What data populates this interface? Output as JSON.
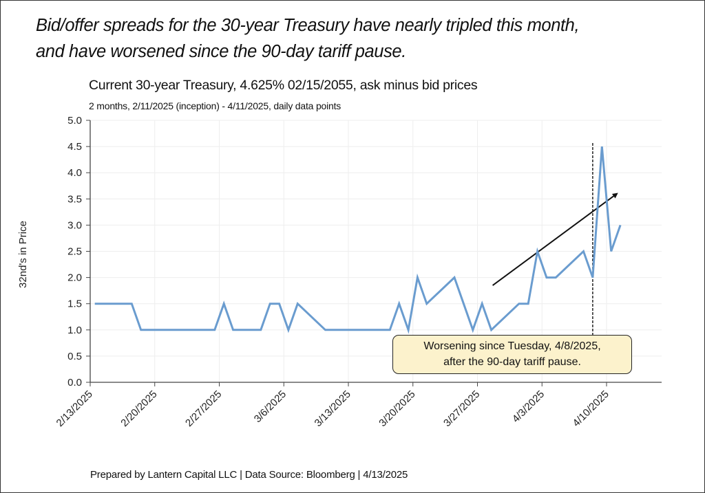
{
  "headline": {
    "line1": "Bid/offer spreads for the 30-year Treasury have nearly tripled this month,",
    "line2": "and have worsened since the 90-day tariff pause."
  },
  "footer": "Prepared by Lantern Capital LLC | Data Source: Bloomberg | 4/13/2025",
  "colors": {
    "series": "#6A9CCF",
    "callout_fill": "#FCF2CC",
    "axis": "#444444",
    "grid": "#EEEEEE"
  },
  "chart_data": {
    "type": "line",
    "title": "Current 30-year Treasury, 4.625% 02/15/2055, ask minus bid prices",
    "subtitle": "2 months, 2/11/2025 (inception) - 4/11/2025, daily data points",
    "xlabel": "",
    "ylabel": "32nd's in Price",
    "ylim": [
      0,
      5
    ],
    "yticks": [
      "0.0",
      "0.5",
      "1.0",
      "1.5",
      "2.0",
      "2.5",
      "3.0",
      "3.5",
      "4.0",
      "4.5",
      "5.0"
    ],
    "xticks": [
      "2/13/2025",
      "2/20/2025",
      "2/27/2025",
      "3/6/2025",
      "3/13/2025",
      "3/20/2025",
      "3/27/2025",
      "4/3/2025",
      "4/10/2025"
    ],
    "xrange": [
      "2/13/2025",
      "4/14/2025"
    ],
    "grid": true,
    "series": [
      {
        "name": "Ask minus bid",
        "points": [
          {
            "x": "2/13/2025",
            "y": 1.5
          },
          {
            "x": "2/17/2025",
            "y": 1.5
          },
          {
            "x": "2/18/2025",
            "y": 1.0
          },
          {
            "x": "2/26/2025",
            "y": 1.0
          },
          {
            "x": "2/27/2025",
            "y": 1.5
          },
          {
            "x": "2/28/2025",
            "y": 1.0
          },
          {
            "x": "3/3/2025",
            "y": 1.0
          },
          {
            "x": "3/4/2025",
            "y": 1.5
          },
          {
            "x": "3/5/2025",
            "y": 1.5
          },
          {
            "x": "3/6/2025",
            "y": 1.0
          },
          {
            "x": "3/7/2025",
            "y": 1.5
          },
          {
            "x": "3/10/2025",
            "y": 1.0
          },
          {
            "x": "3/17/2025",
            "y": 1.0
          },
          {
            "x": "3/18/2025",
            "y": 1.5
          },
          {
            "x": "3/19/2025",
            "y": 1.0
          },
          {
            "x": "3/20/2025",
            "y": 2.0
          },
          {
            "x": "3/21/2025",
            "y": 1.5
          },
          {
            "x": "3/24/2025",
            "y": 2.0
          },
          {
            "x": "3/26/2025",
            "y": 1.0
          },
          {
            "x": "3/27/2025",
            "y": 1.5
          },
          {
            "x": "3/28/2025",
            "y": 1.0
          },
          {
            "x": "3/31/2025",
            "y": 1.5
          },
          {
            "x": "4/1/2025",
            "y": 1.5
          },
          {
            "x": "4/2/2025",
            "y": 2.5
          },
          {
            "x": "4/3/2025",
            "y": 2.0
          },
          {
            "x": "4/4/2025",
            "y": 2.0
          },
          {
            "x": "4/7/2025",
            "y": 2.5
          },
          {
            "x": "4/8/2025",
            "y": 2.0
          },
          {
            "x": "4/9/2025",
            "y": 4.5
          },
          {
            "x": "4/10/2025",
            "y": 2.5
          },
          {
            "x": "4/11/2025",
            "y": 3.0
          }
        ]
      }
    ],
    "annotations": {
      "vline": {
        "x": "4/8/2025",
        "style": "dashed"
      },
      "trend_arrow": {
        "from": {
          "x": "3/28/2025",
          "y": 1.85
        },
        "to": {
          "x": "4/11/2025",
          "y": 3.6
        }
      },
      "callout": {
        "line1": "Worsening since Tuesday, 4/8/2025,",
        "line2": "after the 90-day tariff pause."
      }
    }
  }
}
